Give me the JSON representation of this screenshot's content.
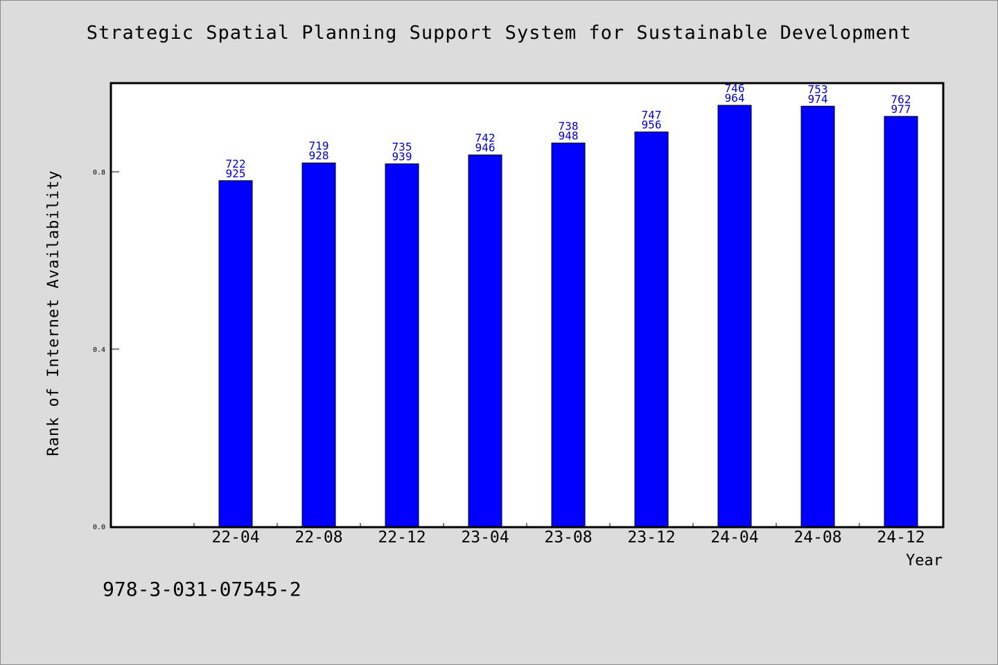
{
  "title": "Strategic Spatial Planning Support System for Sustainable Development",
  "footer_code": "978-3-031-07545-2",
  "colors": {
    "background": "#dcdcdc",
    "plot_background": "#ffffff",
    "bar": "#0000ff",
    "bar_label": "#0000cc"
  },
  "chart_data": {
    "type": "bar",
    "title": "Strategic Spatial Planning Support System for Sustainable Development",
    "xlabel": "Year",
    "ylabel": "Rank of Internet Availability",
    "categories": [
      "22-04",
      "22-08",
      "22-12",
      "23-04",
      "23-08",
      "23-12",
      "24-04",
      "24-08",
      "24-12"
    ],
    "series": [
      {
        "values": [
          0.78,
          0.82,
          0.818,
          0.838,
          0.865,
          0.89,
          0.95,
          0.948,
          0.925
        ],
        "labels_top": [
          "722",
          "719",
          "735",
          "742",
          "738",
          "747",
          "746",
          "753",
          "762"
        ],
        "labels_bottom": [
          "925",
          "928",
          "939",
          "946",
          "948",
          "956",
          "964",
          "974",
          "977"
        ]
      }
    ],
    "yticks": [
      "0.0",
      "0.4",
      "0.8"
    ],
    "ylim": [
      0,
      1.0
    ],
    "grid": false,
    "legend": "none"
  }
}
